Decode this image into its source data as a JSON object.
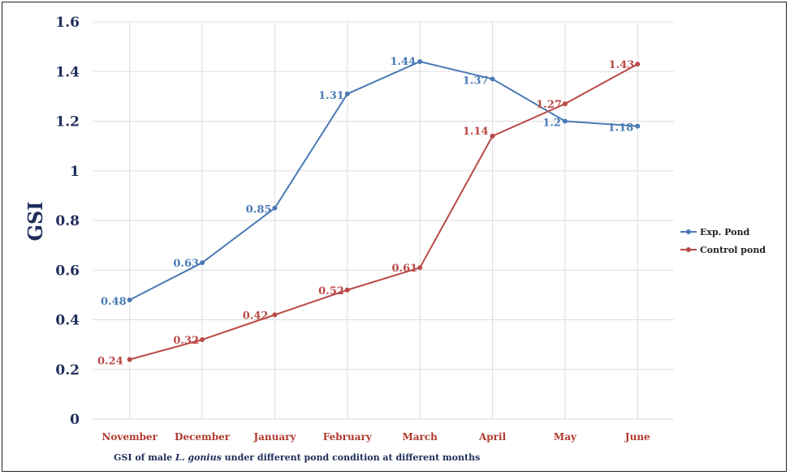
{
  "chart_data": {
    "type": "line",
    "categories": [
      "November",
      "December",
      "January",
      "February",
      "March",
      "April",
      "May",
      "June"
    ],
    "series": [
      {
        "name": "Exp. Pond",
        "values": [
          0.48,
          0.63,
          0.85,
          1.31,
          1.44,
          1.37,
          1.2,
          1.18
        ],
        "labels": [
          "0.48",
          "0.63",
          "0.85",
          "1.31",
          "1.44",
          "1.37",
          "1.2",
          "1.18"
        ],
        "color": "#4a7ab5"
      },
      {
        "name": "Control pond",
        "values": [
          0.24,
          0.32,
          0.42,
          0.52,
          0.61,
          1.14,
          1.27,
          1.43
        ],
        "labels": [
          "0.24",
          "0.32",
          "0.42",
          "0.52",
          "0.61",
          "1.14",
          "1.27",
          "1.43"
        ],
        "color": "#b94a48"
      }
    ],
    "ylabel": "GSI",
    "xlabel_parts": [
      "GSI of male ",
      "L. gonius",
      " under different pond condition at different months"
    ],
    "ylim": [
      0,
      1.6
    ],
    "yticks": [
      "0",
      "0.2",
      "0.4",
      "0.6",
      "0.8",
      "1",
      "1.2",
      "1.4",
      "1.6"
    ],
    "grid": true,
    "legend_position": "right",
    "colors": {
      "axis_text": "#1f2d5a",
      "x_tick_text": "#b03a2e",
      "grid": "#dddddd"
    }
  }
}
